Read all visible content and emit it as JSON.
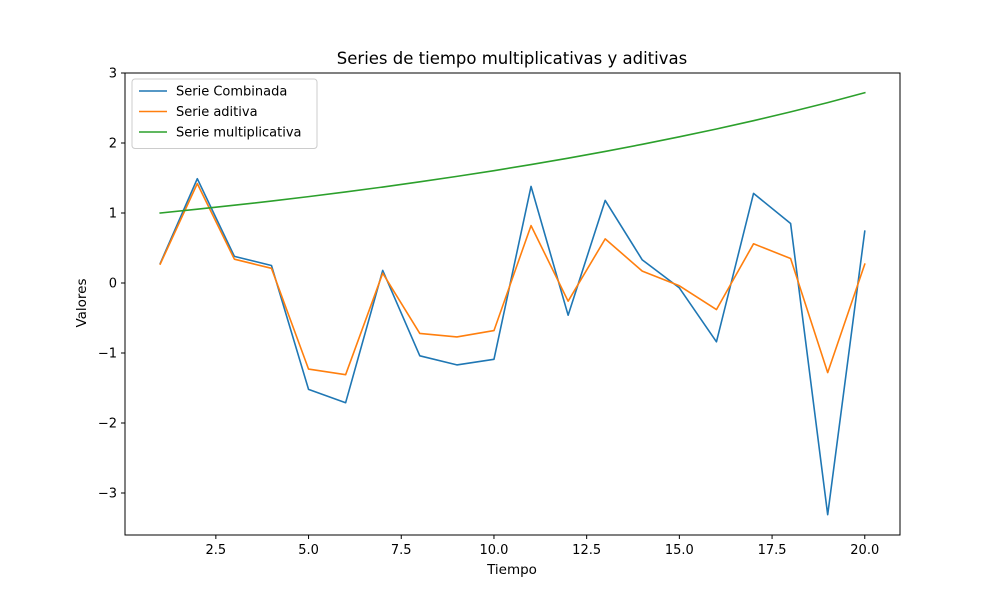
{
  "chart_data": {
    "type": "line",
    "title": "Series de tiempo multiplicativas y aditivas",
    "xlabel": "Tiempo",
    "ylabel": "Valores",
    "xlim": [
      0.05,
      20.95
    ],
    "ylim": [
      -3.6,
      3.0
    ],
    "x_ticks": [
      2.5,
      5.0,
      7.5,
      10.0,
      12.5,
      15.0,
      17.5,
      20.0
    ],
    "x_tick_labels": [
      "2.5",
      "5.0",
      "7.5",
      "10.0",
      "12.5",
      "15.0",
      "17.5",
      "20.0"
    ],
    "y_ticks": [
      -3,
      -2,
      -1,
      0,
      1,
      2,
      3
    ],
    "y_tick_labels": [
      "−3",
      "−2",
      "−1",
      "0",
      "1",
      "2",
      "3"
    ],
    "grid": false,
    "legend_position": "top-left",
    "x": [
      1,
      2,
      3,
      4,
      5,
      6,
      7,
      8,
      9,
      10,
      11,
      12,
      13,
      14,
      15,
      16,
      17,
      18,
      19,
      20
    ],
    "series": [
      {
        "name": "Serie Combinada",
        "color": "#1f77b4",
        "values": [
          0.28,
          1.49,
          0.38,
          0.25,
          -1.52,
          -1.71,
          0.18,
          -1.04,
          -1.17,
          -1.09,
          1.38,
          -0.46,
          1.18,
          0.33,
          -0.07,
          -0.84,
          1.28,
          0.85,
          -3.31,
          0.74
        ]
      },
      {
        "name": "Serie aditiva",
        "color": "#ff7f0e",
        "values": [
          0.27,
          1.42,
          0.34,
          0.21,
          -1.23,
          -1.31,
          0.14,
          -0.72,
          -0.77,
          -0.68,
          0.82,
          -0.26,
          0.63,
          0.17,
          -0.04,
          -0.38,
          0.56,
          0.35,
          -1.28,
          0.27
        ]
      },
      {
        "name": "Serie multiplicativa",
        "color": "#2ca02c",
        "values": [
          1.0,
          1.054,
          1.111,
          1.171,
          1.234,
          1.301,
          1.371,
          1.445,
          1.523,
          1.605,
          1.692,
          1.783,
          1.879,
          1.981,
          2.088,
          2.2,
          2.319,
          2.445,
          2.577,
          2.718
        ]
      }
    ]
  }
}
